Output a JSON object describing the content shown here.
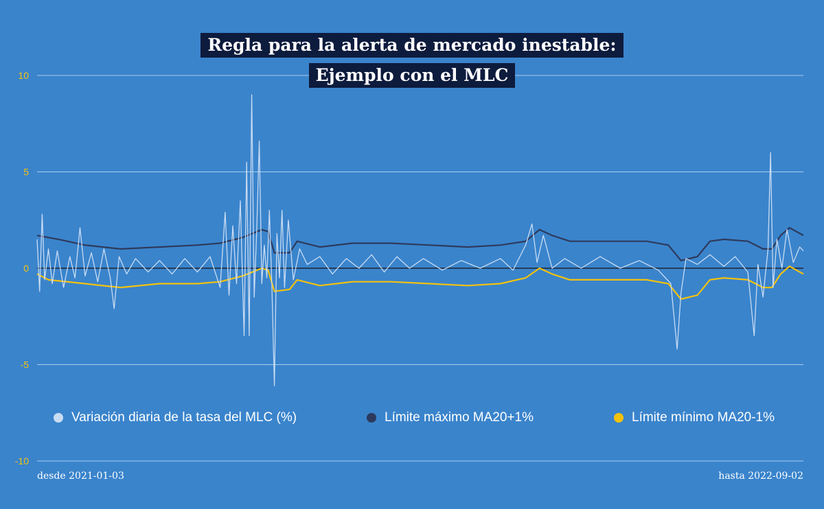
{
  "title_lines": [
    "Regla para la alerta de mercado inestable:",
    "Ejemplo con el MLC"
  ],
  "footer": {
    "start": "desde 2021-01-03",
    "end": "hasta 2022-09-02"
  },
  "colors": {
    "background": "#3a84cc",
    "title_bg": "#0d1b3d",
    "grid": "#a9cdf0",
    "zero_line": "#1e2430",
    "tick_label": "#f4c20d",
    "series_variacion": "#c9dcf3",
    "series_max": "#2d3a5c",
    "series_min": "#f4c20d"
  },
  "chart_data": {
    "type": "line",
    "title": "Regla para la alerta de mercado inestable: Ejemplo con el MLC",
    "xlabel": "",
    "ylabel": "",
    "x_range": [
      "2021-01-03",
      "2022-09-02"
    ],
    "ylim": [
      -10,
      10
    ],
    "yticks": [
      10,
      5,
      0,
      -5,
      -10
    ],
    "ytick_labels": [
      "10",
      "5",
      "0",
      "-5",
      "-10"
    ],
    "grid": true,
    "legend_position": "bottom",
    "series": [
      {
        "name": "Variación diaria de la tasa del MLC (%)",
        "color": "#c9dcf3",
        "points": [
          [
            "2021-01-03",
            1.5
          ],
          [
            "2021-01-05",
            -1.2
          ],
          [
            "2021-01-07",
            2.8
          ],
          [
            "2021-01-09",
            -0.6
          ],
          [
            "2021-01-12",
            1.0
          ],
          [
            "2021-01-15",
            -0.8
          ],
          [
            "2021-01-19",
            0.9
          ],
          [
            "2021-01-24",
            -1.0
          ],
          [
            "2021-01-29",
            0.6
          ],
          [
            "2021-02-02",
            -0.5
          ],
          [
            "2021-02-06",
            2.1
          ],
          [
            "2021-02-10",
            -0.4
          ],
          [
            "2021-02-15",
            0.8
          ],
          [
            "2021-02-20",
            -0.7
          ],
          [
            "2021-02-25",
            1.0
          ],
          [
            "2021-03-02",
            -0.5
          ],
          [
            "2021-03-05",
            -2.1
          ],
          [
            "2021-03-09",
            0.6
          ],
          [
            "2021-03-15",
            -0.3
          ],
          [
            "2021-03-22",
            0.5
          ],
          [
            "2021-04-01",
            -0.2
          ],
          [
            "2021-04-10",
            0.4
          ],
          [
            "2021-04-20",
            -0.3
          ],
          [
            "2021-04-30",
            0.5
          ],
          [
            "2021-05-10",
            -0.2
          ],
          [
            "2021-05-20",
            0.6
          ],
          [
            "2021-05-28",
            -1.0
          ],
          [
            "2021-06-01",
            2.9
          ],
          [
            "2021-06-04",
            -1.4
          ],
          [
            "2021-06-07",
            2.2
          ],
          [
            "2021-06-10",
            -0.8
          ],
          [
            "2021-06-13",
            3.5
          ],
          [
            "2021-06-16",
            -3.5
          ],
          [
            "2021-06-18",
            5.5
          ],
          [
            "2021-06-20",
            -3.5
          ],
          [
            "2021-06-22",
            9.0
          ],
          [
            "2021-06-24",
            -1.5
          ],
          [
            "2021-06-26",
            2.0
          ],
          [
            "2021-06-28",
            6.6
          ],
          [
            "2021-06-30",
            -0.8
          ],
          [
            "2021-07-02",
            1.2
          ],
          [
            "2021-07-04",
            -0.5
          ],
          [
            "2021-07-06",
            3.0
          ],
          [
            "2021-07-08",
            -1.0
          ],
          [
            "2021-07-10",
            -6.1
          ],
          [
            "2021-07-12",
            1.8
          ],
          [
            "2021-07-14",
            -0.5
          ],
          [
            "2021-07-16",
            3.0
          ],
          [
            "2021-07-18",
            -1.0
          ],
          [
            "2021-07-21",
            2.5
          ],
          [
            "2021-07-25",
            -0.6
          ],
          [
            "2021-07-30",
            1.0
          ],
          [
            "2021-08-05",
            0.2
          ],
          [
            "2021-08-15",
            0.6
          ],
          [
            "2021-08-25",
            -0.3
          ],
          [
            "2021-09-05",
            0.5
          ],
          [
            "2021-09-15",
            0.0
          ],
          [
            "2021-09-25",
            0.7
          ],
          [
            "2021-10-05",
            -0.2
          ],
          [
            "2021-10-15",
            0.6
          ],
          [
            "2021-10-25",
            0.0
          ],
          [
            "2021-11-05",
            0.5
          ],
          [
            "2021-11-20",
            -0.1
          ],
          [
            "2021-12-05",
            0.4
          ],
          [
            "2021-12-20",
            0.0
          ],
          [
            "2022-01-05",
            0.5
          ],
          [
            "2022-01-15",
            -0.1
          ],
          [
            "2022-01-25",
            1.2
          ],
          [
            "2022-01-30",
            2.3
          ],
          [
            "2022-02-03",
            0.3
          ],
          [
            "2022-02-08",
            1.7
          ],
          [
            "2022-02-15",
            0.0
          ],
          [
            "2022-02-25",
            0.5
          ],
          [
            "2022-03-10",
            0.0
          ],
          [
            "2022-03-25",
            0.6
          ],
          [
            "2022-04-10",
            0.0
          ],
          [
            "2022-04-25",
            0.4
          ],
          [
            "2022-05-10",
            -0.1
          ],
          [
            "2022-05-20",
            -0.8
          ],
          [
            "2022-05-25",
            -4.2
          ],
          [
            "2022-05-28",
            -1.3
          ],
          [
            "2022-06-01",
            0.5
          ],
          [
            "2022-06-10",
            0.2
          ],
          [
            "2022-06-20",
            0.7
          ],
          [
            "2022-07-01",
            0.1
          ],
          [
            "2022-07-10",
            0.6
          ],
          [
            "2022-07-20",
            -0.2
          ],
          [
            "2022-07-25",
            -3.5
          ],
          [
            "2022-07-28",
            0.2
          ],
          [
            "2022-08-01",
            -1.5
          ],
          [
            "2022-08-05",
            1.0
          ],
          [
            "2022-08-07",
            6.0
          ],
          [
            "2022-08-09",
            -1.0
          ],
          [
            "2022-08-12",
            1.5
          ],
          [
            "2022-08-16",
            0.0
          ],
          [
            "2022-08-20",
            2.0
          ],
          [
            "2022-08-25",
            0.3
          ],
          [
            "2022-08-30",
            1.1
          ],
          [
            "2022-09-02",
            0.9
          ]
        ]
      },
      {
        "name": "Límite máximo MA20+1%",
        "color": "#2d3a5c",
        "points": [
          [
            "2021-01-03",
            1.7
          ],
          [
            "2021-01-20",
            1.5
          ],
          [
            "2021-02-10",
            1.2
          ],
          [
            "2021-03-10",
            1.0
          ],
          [
            "2021-04-10",
            1.1
          ],
          [
            "2021-05-10",
            1.2
          ],
          [
            "2021-05-28",
            1.3
          ],
          [
            "2021-06-15",
            1.6
          ],
          [
            "2021-06-30",
            2.0
          ],
          [
            "2021-07-05",
            1.9
          ],
          [
            "2021-07-10",
            0.8
          ],
          [
            "2021-07-22",
            0.8
          ],
          [
            "2021-07-28",
            1.4
          ],
          [
            "2021-08-15",
            1.1
          ],
          [
            "2021-09-10",
            1.3
          ],
          [
            "2021-10-10",
            1.3
          ],
          [
            "2021-11-10",
            1.2
          ],
          [
            "2021-12-10",
            1.1
          ],
          [
            "2022-01-05",
            1.2
          ],
          [
            "2022-01-25",
            1.4
          ],
          [
            "2022-02-05",
            2.0
          ],
          [
            "2022-02-15",
            1.7
          ],
          [
            "2022-03-01",
            1.4
          ],
          [
            "2022-04-01",
            1.4
          ],
          [
            "2022-05-01",
            1.4
          ],
          [
            "2022-05-18",
            1.2
          ],
          [
            "2022-05-28",
            0.4
          ],
          [
            "2022-06-10",
            0.6
          ],
          [
            "2022-06-20",
            1.4
          ],
          [
            "2022-07-01",
            1.5
          ],
          [
            "2022-07-20",
            1.4
          ],
          [
            "2022-08-01",
            1.0
          ],
          [
            "2022-08-08",
            1.0
          ],
          [
            "2022-08-15",
            1.7
          ],
          [
            "2022-08-22",
            2.1
          ],
          [
            "2022-09-02",
            1.7
          ]
        ]
      },
      {
        "name": "Límite mínimo MA20-1%",
        "color": "#f4c20d",
        "points": [
          [
            "2021-01-03",
            -0.3
          ],
          [
            "2021-01-12",
            -0.6
          ],
          [
            "2021-02-10",
            -0.8
          ],
          [
            "2021-03-10",
            -1.0
          ],
          [
            "2021-04-10",
            -0.8
          ],
          [
            "2021-05-10",
            -0.8
          ],
          [
            "2021-05-28",
            -0.7
          ],
          [
            "2021-06-15",
            -0.4
          ],
          [
            "2021-06-30",
            0.0
          ],
          [
            "2021-07-05",
            -0.1
          ],
          [
            "2021-07-10",
            -1.2
          ],
          [
            "2021-07-22",
            -1.1
          ],
          [
            "2021-07-28",
            -0.6
          ],
          [
            "2021-08-15",
            -0.9
          ],
          [
            "2021-09-10",
            -0.7
          ],
          [
            "2021-10-10",
            -0.7
          ],
          [
            "2021-11-10",
            -0.8
          ],
          [
            "2021-12-10",
            -0.9
          ],
          [
            "2022-01-05",
            -0.8
          ],
          [
            "2022-01-25",
            -0.5
          ],
          [
            "2022-02-05",
            0.0
          ],
          [
            "2022-02-15",
            -0.3
          ],
          [
            "2022-03-01",
            -0.6
          ],
          [
            "2022-04-01",
            -0.6
          ],
          [
            "2022-05-01",
            -0.6
          ],
          [
            "2022-05-18",
            -0.8
          ],
          [
            "2022-05-28",
            -1.6
          ],
          [
            "2022-06-10",
            -1.4
          ],
          [
            "2022-06-20",
            -0.6
          ],
          [
            "2022-07-01",
            -0.5
          ],
          [
            "2022-07-20",
            -0.6
          ],
          [
            "2022-08-01",
            -1.0
          ],
          [
            "2022-08-08",
            -1.0
          ],
          [
            "2022-08-15",
            -0.3
          ],
          [
            "2022-08-22",
            0.1
          ],
          [
            "2022-09-02",
            -0.3
          ]
        ]
      }
    ]
  }
}
